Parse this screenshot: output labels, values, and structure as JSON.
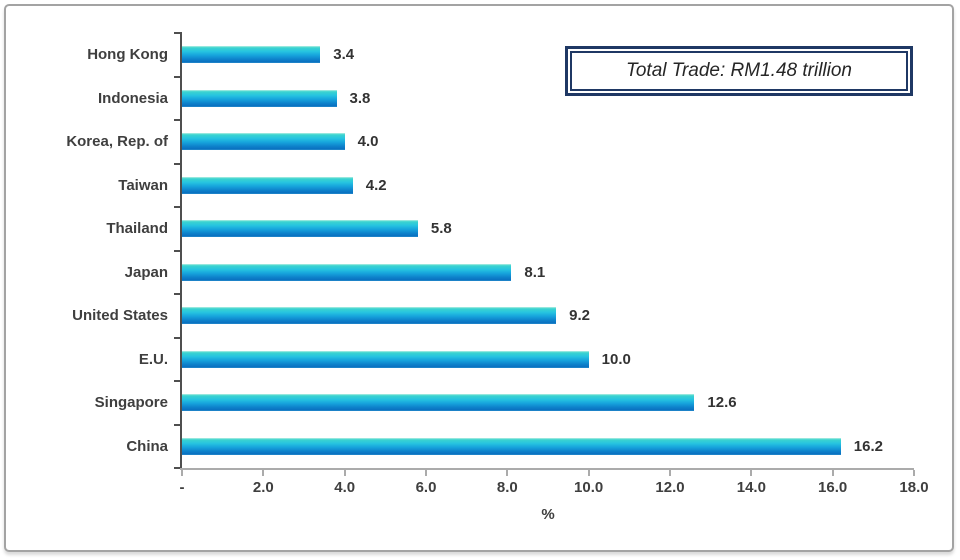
{
  "chart_data": {
    "type": "bar",
    "orientation": "horizontal",
    "title": "",
    "categories": [
      "Hong Kong",
      "Indonesia",
      "Korea, Rep. of",
      "Taiwan",
      "Thailand",
      "Japan",
      "United States",
      "E.U.",
      "Singapore",
      "China"
    ],
    "values": [
      3.4,
      3.8,
      4.0,
      4.2,
      5.8,
      8.1,
      9.2,
      10.0,
      12.6,
      16.2
    ],
    "value_labels": [
      "3.4",
      "3.8",
      "4.0",
      "4.2",
      "5.8",
      "8.1",
      "9.2",
      "10.0",
      "12.6",
      "16.2"
    ],
    "xlabel": "%",
    "ylabel": "",
    "xlim": [
      0,
      18
    ],
    "x_ticks": [
      {
        "value": 0,
        "label": "-"
      },
      {
        "value": 2,
        "label": "2.0"
      },
      {
        "value": 4,
        "label": "4.0"
      },
      {
        "value": 6,
        "label": "6.0"
      },
      {
        "value": 8,
        "label": "8.0"
      },
      {
        "value": 10,
        "label": "10.0"
      },
      {
        "value": 12,
        "label": "12.0"
      },
      {
        "value": 14,
        "label": "14.0"
      },
      {
        "value": 16,
        "label": "16.0"
      },
      {
        "value": 18,
        "label": "18.0"
      }
    ],
    "grid": false,
    "legend": false,
    "annotation": {
      "text": "Total Trade: RM1.48 trillion"
    },
    "bar_gradient": [
      "#b9efe4",
      "#3cd4cf",
      "#26c4e0",
      "#16a3dc",
      "#0d7fca",
      "#0a70c0",
      "#2f93cf"
    ]
  },
  "colors": {
    "text": "#3f3f3f",
    "category_axis_line": "#4f4f4f",
    "value_axis_line": "#ababab",
    "frame_border": "#a3a3a3",
    "callout_border": "#1f3864",
    "background": "#ffffff"
  }
}
